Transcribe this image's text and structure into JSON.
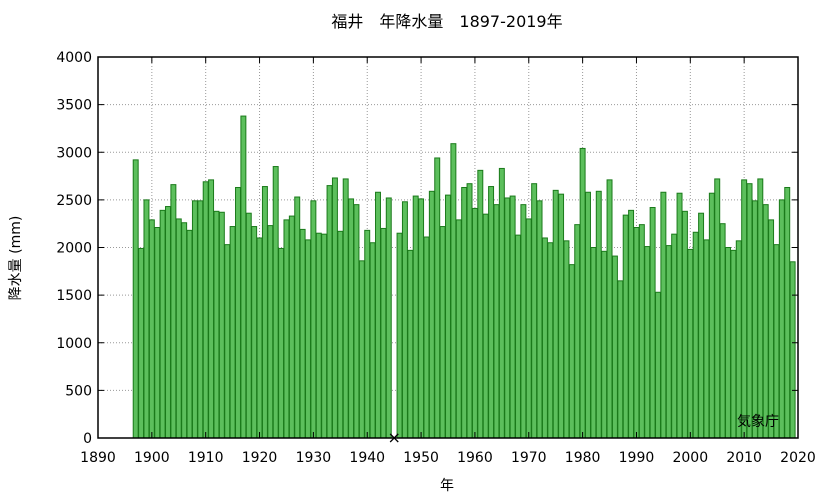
{
  "chart_data": {
    "type": "bar",
    "title": "福井　年降水量　1897-2019年",
    "xlabel": "年",
    "ylabel": "降水量 (mm)",
    "source": "気象庁",
    "xlim": [
      1890,
      2020
    ],
    "ylim": [
      0,
      4000
    ],
    "x_ticks": [
      "1890",
      "1900",
      "1910",
      "1920",
      "1930",
      "1940",
      "1950",
      "1960",
      "1970",
      "1980",
      "1990",
      "2000",
      "2010",
      "2020"
    ],
    "y_ticks": [
      "0",
      "500",
      "1000",
      "1500",
      "2000",
      "2500",
      "3000",
      "3500",
      "4000"
    ],
    "bar_color": "#5cbf5c",
    "bar_edge_color": "#1a7a1a",
    "missing_marker": "×",
    "missing_years": [
      1945
    ],
    "x": [
      1897,
      1898,
      1899,
      1900,
      1901,
      1902,
      1903,
      1904,
      1905,
      1906,
      1907,
      1908,
      1909,
      1910,
      1911,
      1912,
      1913,
      1914,
      1915,
      1916,
      1917,
      1918,
      1919,
      1920,
      1921,
      1922,
      1923,
      1924,
      1925,
      1926,
      1927,
      1928,
      1929,
      1930,
      1931,
      1932,
      1933,
      1934,
      1935,
      1936,
      1937,
      1938,
      1939,
      1940,
      1941,
      1942,
      1943,
      1944,
      1945,
      1946,
      1947,
      1948,
      1949,
      1950,
      1951,
      1952,
      1953,
      1954,
      1955,
      1956,
      1957,
      1958,
      1959,
      1960,
      1961,
      1962,
      1963,
      1964,
      1965,
      1966,
      1967,
      1968,
      1969,
      1970,
      1971,
      1972,
      1973,
      1974,
      1975,
      1976,
      1977,
      1978,
      1979,
      1980,
      1981,
      1982,
      1983,
      1984,
      1985,
      1986,
      1987,
      1988,
      1989,
      1990,
      1991,
      1992,
      1993,
      1994,
      1995,
      1996,
      1997,
      1998,
      1999,
      2000,
      2001,
      2002,
      2003,
      2004,
      2005,
      2006,
      2007,
      2008,
      2009,
      2010,
      2011,
      2012,
      2013,
      2014,
      2015,
      2016,
      2017,
      2018,
      2019
    ],
    "values": [
      2920,
      1990,
      2500,
      2290,
      2210,
      2390,
      2430,
      2660,
      2300,
      2260,
      2180,
      2490,
      2490,
      2690,
      2710,
      2380,
      2370,
      2030,
      2220,
      2630,
      3380,
      2360,
      2220,
      2100,
      2640,
      2230,
      2850,
      1990,
      2290,
      2330,
      2530,
      2190,
      2080,
      2490,
      2150,
      2140,
      2650,
      2730,
      2170,
      2720,
      2510,
      2450,
      1860,
      2180,
      2050,
      2580,
      2200,
      2520,
      null,
      2150,
      2480,
      1970,
      2540,
      2510,
      2110,
      2590,
      2940,
      2220,
      2550,
      3090,
      2290,
      2630,
      2670,
      2410,
      2810,
      2350,
      2640,
      2450,
      2830,
      2520,
      2540,
      2130,
      2450,
      2300,
      2670,
      2490,
      2100,
      2050,
      2600,
      2560,
      2070,
      1820,
      2240,
      3040,
      2580,
      2000,
      2590,
      1960,
      2710,
      1910,
      1650,
      2340,
      2390,
      2210,
      2240,
      2010,
      2420,
      1530,
      2580,
      2020,
      2140,
      2570,
      2380,
      1980,
      2160,
      2360,
      2080,
      2570,
      2720,
      2250,
      2000,
      1970,
      2070,
      2710,
      2670,
      2490,
      2720,
      2450,
      2290,
      2030,
      2500,
      2630,
      1850
    ]
  }
}
